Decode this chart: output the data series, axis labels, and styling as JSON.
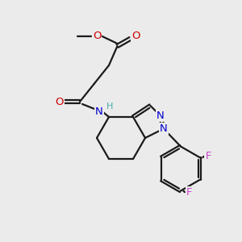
{
  "bg_color": "#ebebeb",
  "bond_color": "#1a1a1a",
  "bond_lw": 1.6,
  "N_color": "#0000cc",
  "O_color": "#cc0000",
  "F_color": "#cc44cc",
  "H_color": "#44aaaa",
  "font_size": 9.5,
  "fig_size": [
    3.0,
    3.0
  ],
  "dpi": 100,
  "xlim": [
    0,
    10
  ],
  "ylim": [
    0,
    10
  ]
}
